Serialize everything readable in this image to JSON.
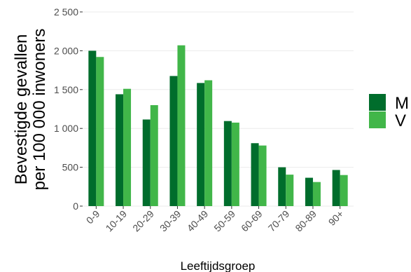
{
  "chart_data": {
    "type": "bar",
    "title": "",
    "xlabel": "Leeftijdsgroep",
    "ylabel": [
      "Bevestigde gevallen",
      "per 100 000 inwoners"
    ],
    "categories": [
      "0-9",
      "10-19",
      "20-29",
      "30-39",
      "40-49",
      "50-59",
      "60-69",
      "70-79",
      "80-89",
      "90+"
    ],
    "series": [
      {
        "name": "M",
        "color": "#006d2c",
        "values": [
          2000,
          1440,
          1115,
          1675,
          1585,
          1095,
          810,
          500,
          365,
          465
        ]
      },
      {
        "name": "V",
        "color": "#41b649",
        "values": [
          1920,
          1510,
          1300,
          2070,
          1620,
          1075,
          780,
          405,
          310,
          400
        ]
      }
    ],
    "ylim": [
      0,
      2500
    ],
    "yticks": [
      0,
      500,
      1000,
      1500,
      2000,
      2500
    ],
    "ytick_labels": [
      "0",
      "500",
      "1 000",
      "1 500",
      "2 000",
      "2 500"
    ],
    "grid": true,
    "legend": {
      "position": "right",
      "items": [
        "M",
        "V"
      ]
    }
  }
}
